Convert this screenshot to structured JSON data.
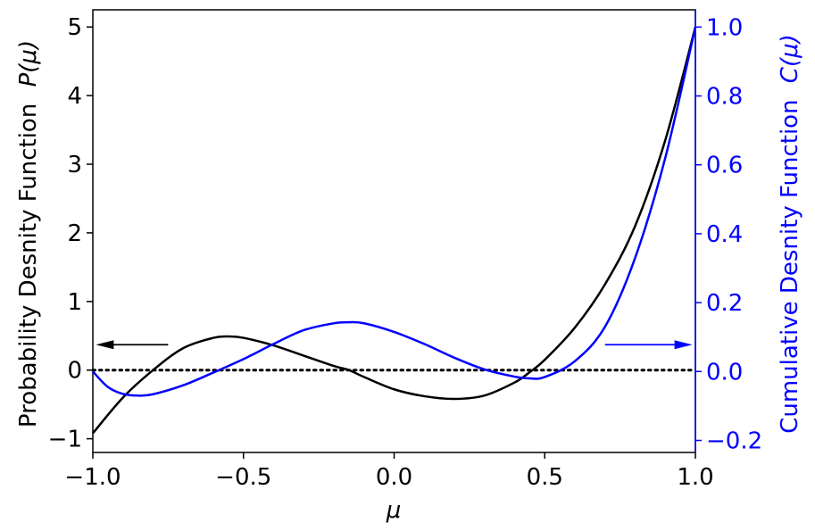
{
  "chart_data": {
    "type": "line",
    "title": "",
    "xlabel": "μ",
    "ylabel_left": "Probability Desnity Function P(μ)",
    "ylabel_left_text": "Probability Desnity Function",
    "ylabel_left_symbol": "P(μ)",
    "ylabel_right": "Cumulative Desnity Function C(μ)",
    "ylabel_right_text": "Cumulative Desnity Function",
    "ylabel_right_symbol": "C(μ)",
    "xlim": [
      -1.0,
      1.0
    ],
    "ylim_left": [
      -1.2,
      5.25
    ],
    "ylim_right": [
      -0.235,
      1.05
    ],
    "x_ticks": [
      -1.0,
      -0.5,
      0.0,
      0.5,
      1.0
    ],
    "x_tick_labels": [
      "−1.0",
      "−0.5",
      "0.0",
      "0.5",
      "1.0"
    ],
    "y_left_ticks": [
      -1,
      0,
      1,
      2,
      3,
      4,
      5
    ],
    "y_left_tick_labels": [
      "−1",
      "0",
      "1",
      "2",
      "3",
      "4",
      "5"
    ],
    "y_right_ticks": [
      -0.2,
      0.0,
      0.2,
      0.4,
      0.6,
      0.8,
      1.0
    ],
    "y_right_tick_labels": [
      "−0.2",
      "0.0",
      "0.2",
      "0.4",
      "0.6",
      "0.8",
      "1.0"
    ],
    "grid": false,
    "legend": "none",
    "series": [
      {
        "axis": "left",
        "color": "#000000",
        "x": [
          -1.0,
          -0.9,
          -0.8,
          -0.7,
          -0.6,
          -0.55,
          -0.5,
          -0.4,
          -0.3,
          -0.2,
          -0.15,
          -0.1,
          0.0,
          0.1,
          0.2,
          0.3,
          0.4,
          0.45,
          0.5,
          0.6,
          0.7,
          0.8,
          0.9,
          1.0
        ],
        "y": [
          -0.92,
          -0.4,
          0.0,
          0.32,
          0.47,
          0.49,
          0.47,
          0.36,
          0.21,
          0.06,
          0.0,
          -0.1,
          -0.28,
          -0.38,
          -0.42,
          -0.37,
          -0.18,
          -0.03,
          0.15,
          0.62,
          1.25,
          2.1,
          3.35,
          5.0
        ]
      },
      {
        "axis": "right",
        "color": "#0000ff",
        "x": [
          -1.0,
          -0.95,
          -0.9,
          -0.85,
          -0.8,
          -0.7,
          -0.6,
          -0.5,
          -0.4,
          -0.3,
          -0.2,
          -0.15,
          -0.1,
          0.0,
          0.1,
          0.2,
          0.3,
          0.4,
          0.45,
          0.5,
          0.6,
          0.7,
          0.8,
          0.9,
          1.0
        ],
        "y": [
          0.0,
          -0.045,
          -0.065,
          -0.07,
          -0.066,
          -0.04,
          -0.003,
          0.036,
          0.08,
          0.12,
          0.14,
          0.143,
          0.14,
          0.115,
          0.08,
          0.04,
          0.006,
          -0.015,
          -0.02,
          -0.016,
          0.03,
          0.13,
          0.33,
          0.62,
          1.0
        ]
      }
    ],
    "reference_lines": [
      {
        "type": "horizontal",
        "axis": "left",
        "y": 0,
        "style": "dotted",
        "color": "#000000"
      }
    ],
    "annotations": [
      {
        "type": "arrow",
        "axis": "left",
        "direction": "left",
        "x_from": -0.75,
        "x_to": -0.99,
        "y": 0.37,
        "color": "#000000"
      },
      {
        "type": "arrow",
        "axis": "left",
        "direction": "right",
        "x_from": 0.7,
        "x_to": 0.99,
        "y": 0.37,
        "color": "#0000ff"
      }
    ]
  }
}
